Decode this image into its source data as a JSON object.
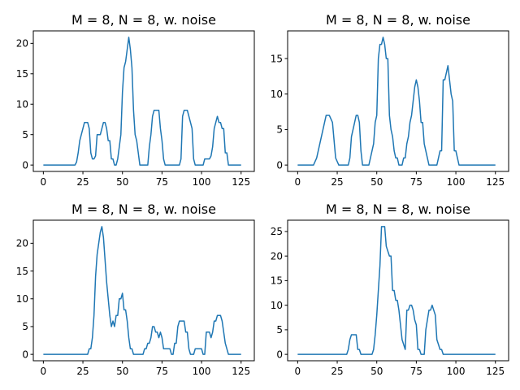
{
  "chart_data": [
    {
      "type": "line",
      "title": "M = 8, N = 8, w. noise",
      "xlim": [
        -6.35,
        133.35
      ],
      "ylim": [
        -1.05,
        22.05
      ],
      "xticks": [
        0,
        25,
        50,
        75,
        100,
        125
      ],
      "yticks": [
        0,
        5,
        10,
        15,
        20
      ],
      "series": [
        {
          "x": [
            0,
            2,
            4,
            6,
            8,
            10,
            12,
            14,
            16,
            18,
            20,
            21,
            22,
            23,
            24,
            25,
            26,
            27,
            28,
            29,
            30,
            31,
            32,
            33,
            34,
            35,
            36,
            37,
            38,
            39,
            40,
            41,
            42,
            43,
            44,
            45,
            46,
            47,
            48,
            49,
            50,
            51,
            52,
            53,
            54,
            55,
            56,
            57,
            58,
            59,
            60,
            61,
            62,
            63,
            64,
            65,
            66,
            67,
            68,
            69,
            70,
            71,
            72,
            73,
            74,
            75,
            76,
            77,
            78,
            80,
            82,
            84,
            86,
            87,
            88,
            89,
            90,
            91,
            92,
            93,
            94,
            95,
            96,
            97,
            98,
            99,
            100,
            101,
            102,
            103,
            104,
            105,
            106,
            107,
            108,
            109,
            110,
            111,
            112,
            113,
            114,
            115,
            116,
            117,
            118,
            120,
            122,
            125
          ],
          "values": [
            0,
            0,
            0,
            0,
            0,
            0,
            0,
            0,
            0,
            0,
            0,
            0.5,
            2,
            4,
            5,
            6,
            7,
            7,
            7,
            6,
            2,
            1,
            1,
            1.5,
            5,
            5,
            5,
            6,
            7,
            7,
            6,
            4,
            4,
            1,
            1,
            0,
            0,
            1,
            3,
            5,
            12,
            16,
            17,
            19,
            21,
            19,
            16,
            9,
            5,
            4,
            2,
            0,
            0,
            0,
            0,
            0,
            0,
            3,
            5,
            8,
            9,
            9,
            9,
            9,
            6,
            4,
            1,
            0,
            0,
            0,
            0,
            0,
            0,
            1,
            8,
            9,
            9,
            9,
            8,
            7,
            6,
            1,
            0,
            0,
            0,
            0,
            0,
            0,
            1,
            1,
            1,
            1,
            1.5,
            3,
            6,
            7,
            8,
            7,
            7,
            6,
            6,
            2,
            2,
            0,
            0,
            0,
            0,
            0
          ]
        }
      ]
    },
    {
      "type": "line",
      "title": "M = 8, N = 8, w. noise",
      "xlim": [
        -6.35,
        133.35
      ],
      "ylim": [
        -0.9,
        18.9
      ],
      "xticks": [
        0,
        25,
        50,
        75,
        100,
        125
      ],
      "yticks": [
        0,
        5,
        10,
        15
      ],
      "series": [
        {
          "x": [
            0,
            2,
            4,
            6,
            8,
            10,
            12,
            14,
            16,
            17,
            18,
            19,
            20,
            22,
            24,
            26,
            28,
            30,
            31,
            32,
            33,
            34,
            35,
            36,
            37,
            38,
            39,
            40,
            41,
            42,
            43,
            44,
            45,
            46,
            47,
            48,
            49,
            50,
            51,
            52,
            53,
            54,
            55,
            56,
            57,
            58,
            59,
            60,
            61,
            62,
            63,
            64,
            65,
            66,
            67,
            68,
            69,
            70,
            71,
            72,
            73,
            74,
            75,
            76,
            77,
            78,
            79,
            80,
            81,
            82,
            83,
            84,
            85,
            86,
            87,
            88,
            89,
            90,
            91,
            92,
            93,
            94,
            95,
            96,
            97,
            98,
            99,
            100,
            101,
            102,
            103,
            104,
            105,
            106,
            108,
            110,
            115,
            120,
            125
          ],
          "values": [
            0,
            0,
            0,
            0,
            0,
            0,
            1,
            3,
            5,
            6,
            7,
            7,
            7,
            6,
            1,
            0,
            0,
            0,
            0,
            0,
            1,
            4,
            5,
            6,
            7,
            7,
            6,
            2,
            0,
            0,
            0,
            0,
            0,
            1,
            2,
            3,
            6,
            7,
            15,
            17,
            17,
            18,
            17,
            15,
            15,
            7,
            5,
            4,
            2,
            1,
            1,
            0,
            0,
            0,
            1,
            1,
            3,
            4,
            6,
            7,
            9,
            11,
            12,
            11,
            9,
            6,
            6,
            3,
            2,
            1,
            0,
            0,
            0,
            0,
            0,
            0,
            1,
            2,
            2,
            12,
            12,
            13,
            14,
            12,
            10,
            9,
            2,
            2,
            1,
            0,
            0,
            0,
            0,
            0,
            0,
            0,
            0,
            0,
            0
          ]
        }
      ]
    },
    {
      "type": "line",
      "title": "M = 8, N = 8, w. noise",
      "xlim": [
        -6.35,
        133.35
      ],
      "ylim": [
        -1.15,
        24.15
      ],
      "xticks": [
        0,
        25,
        50,
        75,
        100,
        125
      ],
      "yticks": [
        0,
        5,
        10,
        15,
        20
      ],
      "series": [
        {
          "x": [
            0,
            5,
            10,
            15,
            20,
            25,
            28,
            29,
            30,
            31,
            32,
            33,
            34,
            35,
            36,
            37,
            38,
            39,
            40,
            41,
            42,
            43,
            44,
            45,
            46,
            47,
            48,
            49,
            50,
            51,
            52,
            53,
            54,
            55,
            56,
            57,
            58,
            59,
            60,
            61,
            62,
            63,
            64,
            65,
            66,
            67,
            68,
            69,
            70,
            71,
            72,
            73,
            74,
            75,
            76,
            77,
            78,
            79,
            80,
            81,
            82,
            83,
            84,
            85,
            86,
            87,
            88,
            89,
            90,
            91,
            92,
            93,
            94,
            95,
            96,
            97,
            98,
            99,
            100,
            101,
            102,
            103,
            104,
            105,
            106,
            107,
            108,
            109,
            110,
            111,
            112,
            113,
            114,
            115,
            116,
            117,
            118,
            119,
            120,
            121,
            122,
            125
          ],
          "values": [
            0,
            0,
            0,
            0,
            0,
            0,
            0,
            1,
            1,
            3,
            7,
            14,
            18,
            20,
            22,
            23,
            21,
            17,
            13,
            10,
            7,
            5,
            6,
            5,
            7,
            7,
            10,
            10,
            11,
            8,
            8,
            6,
            3,
            1,
            1,
            0,
            0,
            0,
            0,
            0,
            0,
            0,
            1,
            1,
            2,
            2,
            3,
            5,
            5,
            4,
            4,
            3,
            4,
            3,
            1,
            1,
            1,
            1,
            1,
            0,
            0,
            2,
            2,
            5,
            6,
            6,
            6,
            6,
            4,
            4,
            1,
            0,
            0,
            0,
            1,
            1,
            1,
            1,
            1,
            0,
            0,
            4,
            4,
            4,
            3,
            4,
            6,
            6,
            7,
            7,
            7,
            6,
            4,
            2,
            1,
            0,
            0,
            0,
            0,
            0,
            0,
            0
          ]
        }
      ]
    },
    {
      "type": "line",
      "title": "M = 8, N = 8, w. noise",
      "xlim": [
        -6.35,
        133.35
      ],
      "ylim": [
        -1.3,
        27.3
      ],
      "xticks": [
        0,
        25,
        50,
        75,
        100,
        125
      ],
      "yticks": [
        0,
        5,
        10,
        15,
        20,
        25
      ],
      "series": [
        {
          "x": [
            0,
            5,
            10,
            15,
            20,
            25,
            28,
            29,
            30,
            31,
            32,
            33,
            34,
            35,
            36,
            37,
            38,
            39,
            40,
            41,
            42,
            43,
            44,
            45,
            46,
            47,
            48,
            49,
            50,
            51,
            52,
            53,
            54,
            55,
            56,
            57,
            58,
            59,
            60,
            61,
            62,
            63,
            64,
            65,
            66,
            67,
            68,
            69,
            70,
            71,
            72,
            73,
            74,
            75,
            76,
            77,
            78,
            79,
            80,
            81,
            82,
            83,
            84,
            85,
            86,
            87,
            88,
            89,
            90,
            91,
            92,
            93,
            94,
            95,
            96,
            98,
            100,
            105,
            110,
            115,
            120,
            125
          ],
          "values": [
            0,
            0,
            0,
            0,
            0,
            0,
            0,
            0,
            0,
            0,
            1,
            3,
            4,
            4,
            4,
            4,
            1,
            1,
            0,
            0,
            0,
            0,
            0,
            0,
            0,
            0,
            1,
            4,
            8,
            13,
            18,
            26,
            26,
            26,
            22,
            21,
            20,
            20,
            13,
            13,
            11,
            11,
            9,
            6,
            3,
            2,
            1,
            9,
            9,
            10,
            10,
            9,
            7,
            6,
            1,
            1,
            0,
            0,
            0,
            5,
            7,
            9,
            9,
            10,
            9,
            8,
            3,
            2,
            1,
            1,
            0,
            0,
            0,
            0,
            0,
            0,
            0,
            0,
            0,
            0,
            0,
            0
          ]
        }
      ]
    }
  ]
}
